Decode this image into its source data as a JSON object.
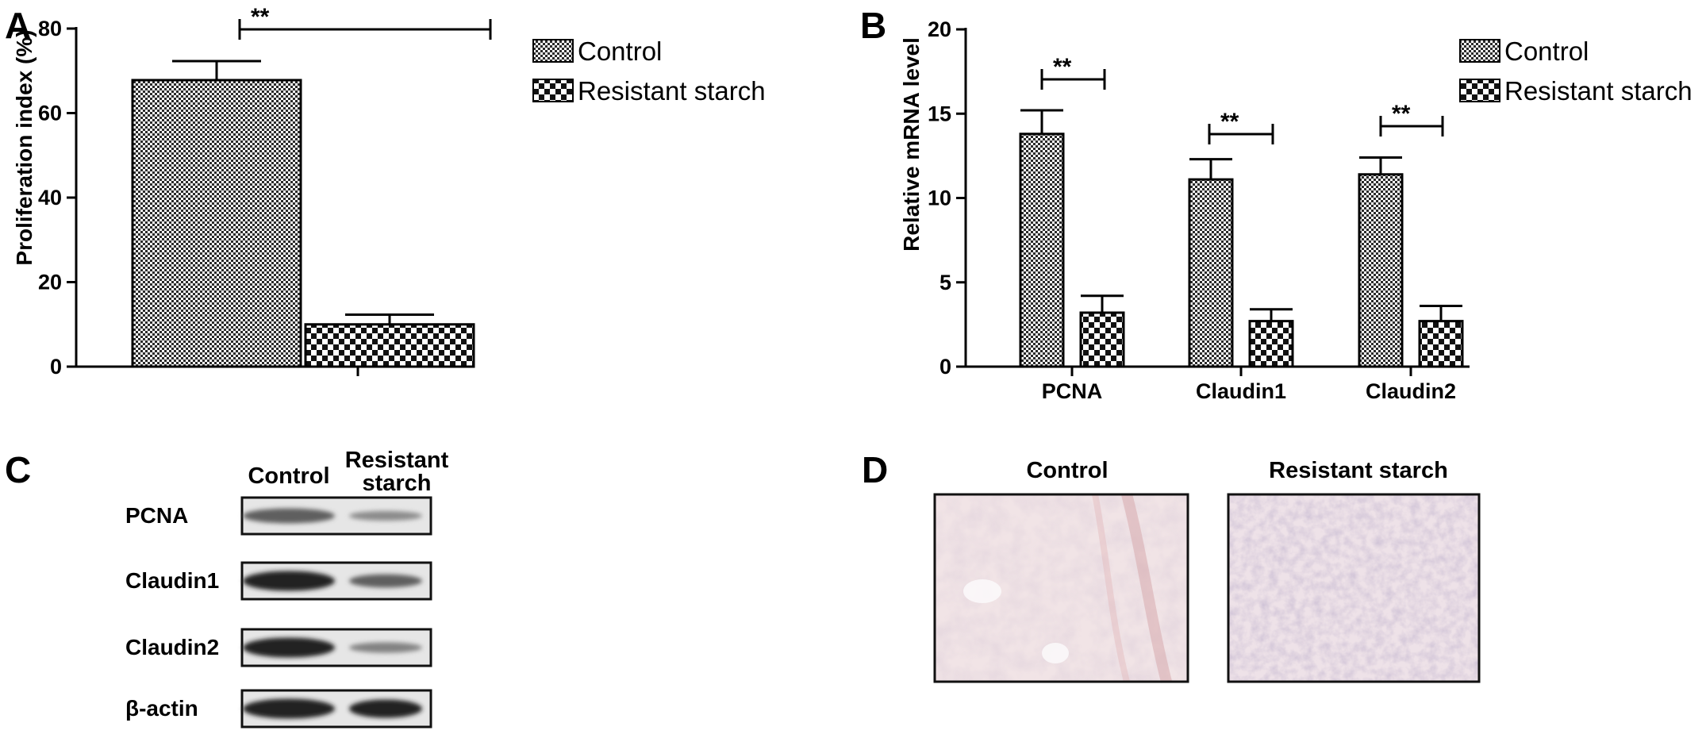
{
  "panels": {
    "a": {
      "letter": "A"
    },
    "b": {
      "letter": "B"
    },
    "c": {
      "letter": "C"
    },
    "d": {
      "letter": "D"
    }
  },
  "legend": {
    "control": "Control",
    "resistant": "Resistant starch"
  },
  "chart_data": [
    {
      "type": "bar",
      "categories": [
        ""
      ],
      "series": [
        {
          "name": "Control",
          "values": [
            67.8
          ],
          "errors": [
            4.5
          ]
        },
        {
          "name": "Resistant starch",
          "values": [
            10.0
          ],
          "errors": [
            2.3
          ]
        }
      ],
      "title": "",
      "xlabel": "",
      "ylabel": "Proliferation index (%)",
      "ylim": [
        0,
        80
      ],
      "yticks": [
        "0",
        "20",
        "40",
        "60",
        "80"
      ],
      "significance": [
        {
          "label": "**"
        }
      ],
      "legend": "top-right"
    },
    {
      "type": "bar",
      "categories": [
        "PCNA",
        "Claudin1",
        "Claudin2"
      ],
      "series": [
        {
          "name": "Control",
          "values": [
            13.8,
            11.1,
            11.4
          ],
          "errors": [
            1.4,
            1.2,
            1.0
          ]
        },
        {
          "name": "Resistant starch",
          "values": [
            3.2,
            2.7,
            2.7
          ],
          "errors": [
            1.0,
            0.7,
            0.9
          ]
        }
      ],
      "title": "",
      "xlabel": "",
      "ylabel": "Relative mRNA level",
      "ylim": [
        0,
        20
      ],
      "yticks": [
        "0",
        "5",
        "10",
        "15",
        "20"
      ],
      "significance": [
        {
          "label": "**"
        },
        {
          "label": "**"
        },
        {
          "label": "**"
        }
      ],
      "legend": "top-right"
    }
  ],
  "blot": {
    "columns": [
      "Control",
      "Resistant\nstarch"
    ],
    "col_control": "Control",
    "col_resistant_1": "Resistant",
    "col_resistant_2": "starch",
    "rows": [
      {
        "label": "PCNA",
        "control_level": 0.6,
        "resistant_level": 0.35
      },
      {
        "label": "Claudin1",
        "control_level": 0.95,
        "resistant_level": 0.6
      },
      {
        "label": "Claudin2",
        "control_level": 0.95,
        "resistant_level": 0.4
      },
      {
        "label": "β-actin",
        "control_level": 0.95,
        "resistant_level": 0.95
      }
    ]
  },
  "histology": {
    "control_label": "Control",
    "resistant_label": "Resistant starch"
  }
}
